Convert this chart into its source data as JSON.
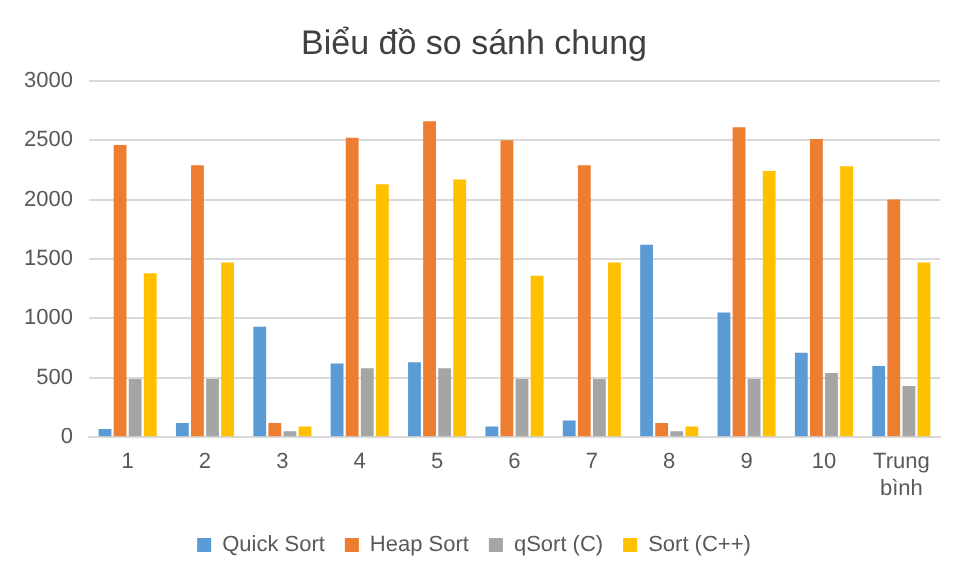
{
  "chart_data": {
    "type": "bar",
    "title": "Biểu đồ so sánh chung",
    "categories": [
      "1",
      "2",
      "3",
      "4",
      "5",
      "6",
      "7",
      "8",
      "9",
      "10",
      "Trung bình"
    ],
    "series": [
      {
        "name": "Quick Sort",
        "color": "#5b9bd5",
        "values": [
          70,
          120,
          930,
          620,
          630,
          90,
          140,
          1620,
          1050,
          710,
          600
        ]
      },
      {
        "name": "Heap Sort",
        "color": "#ed7d31",
        "values": [
          2460,
          2290,
          120,
          2520,
          2660,
          2500,
          2290,
          120,
          2610,
          2510,
          2000
        ]
      },
      {
        "name": "qSort (C)",
        "color": "#a5a5a5",
        "values": [
          490,
          490,
          50,
          580,
          580,
          490,
          490,
          50,
          490,
          540,
          430
        ]
      },
      {
        "name": "Sort (C++)",
        "color": "#ffc000",
        "values": [
          1380,
          1470,
          90,
          2130,
          2170,
          1360,
          1470,
          90,
          2240,
          2280,
          1470
        ]
      }
    ],
    "ylim": [
      0,
      3000
    ],
    "yticks": [
      0,
      500,
      1000,
      1500,
      2000,
      2500,
      3000
    ],
    "grid": "y",
    "legend": "bottom"
  }
}
